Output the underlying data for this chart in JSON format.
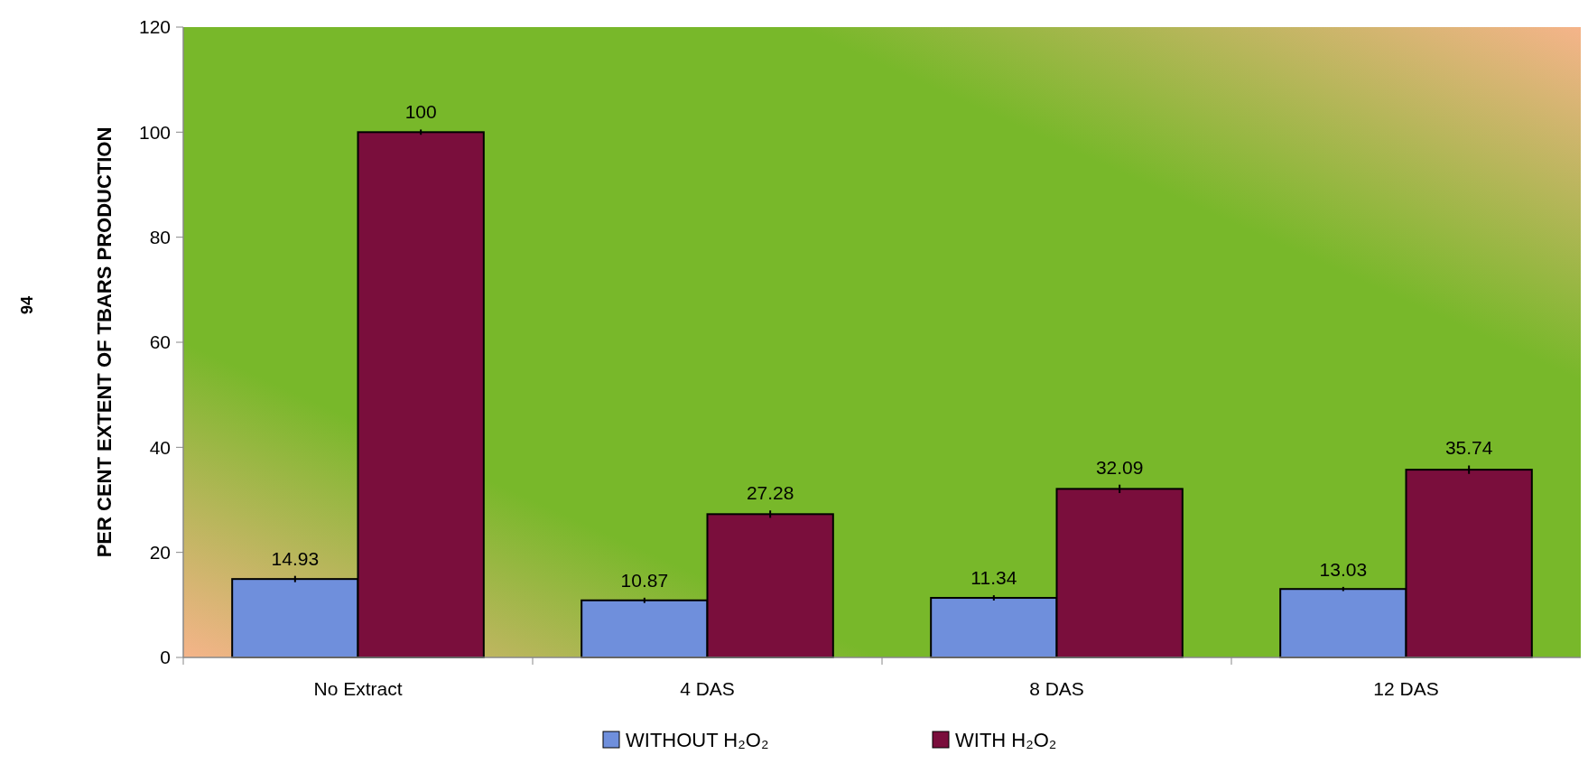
{
  "chart_data": {
    "type": "bar",
    "ylabel": "PER CENT EXTENT OF TBARS PRODUCTION",
    "categories": [
      "No Extract",
      "4 DAS",
      "8 DAS",
      "12 DAS"
    ],
    "series": [
      {
        "name": "WITHOUT H₂O₂",
        "color": "#6f8fdc",
        "values": [
          14.93,
          10.87,
          11.34,
          13.03
        ],
        "errors": [
          0.6,
          0.5,
          0.5,
          0.4
        ]
      },
      {
        "name": "WITH H₂O₂",
        "color": "#7a0e3c",
        "values": [
          100,
          27.28,
          32.09,
          35.74
        ],
        "errors": [
          0.5,
          0.7,
          0.8,
          0.8
        ]
      }
    ],
    "ylim": [
      0,
      120
    ],
    "yticks": [
      0,
      20,
      40,
      60,
      80,
      100,
      120
    ],
    "data_labels": true,
    "legend": "bottom",
    "grid": false,
    "annotations": [
      "94"
    ]
  }
}
